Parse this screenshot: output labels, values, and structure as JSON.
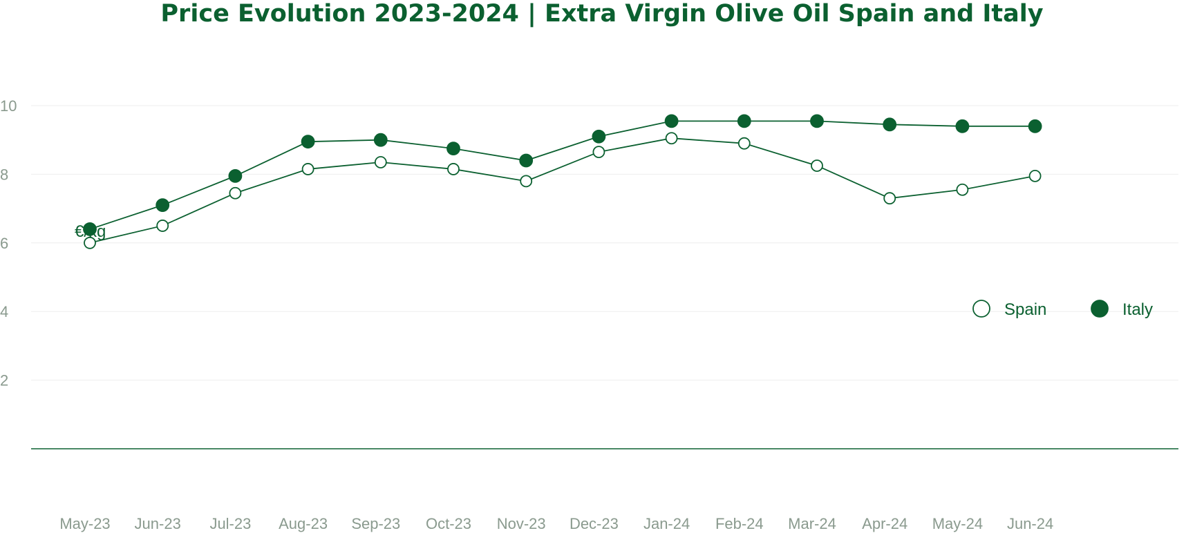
{
  "chart_data": {
    "type": "line",
    "title": "Price Evolution 2023-2024 | Extra Virgin Olive Oil Spain and Italy",
    "ylabel": "€/kg",
    "xlabel": "",
    "categories": [
      "May-23",
      "Jun-23",
      "Jul-23",
      "Aug-23",
      "Sep-23",
      "Oct-23",
      "Nov-23",
      "Dec-23",
      "Jan-24",
      "Feb-24",
      "Mar-24",
      "Apr-24",
      "May-24",
      "Jun-24"
    ],
    "yticks": [
      "2",
      "4",
      "6",
      "8",
      "10"
    ],
    "ylim": [
      0,
      10
    ],
    "grid": true,
    "legend_position": "right",
    "series": [
      {
        "name": "Spain",
        "marker": "open-circle",
        "values": [
          6.0,
          6.5,
          7.45,
          8.15,
          8.35,
          8.15,
          7.8,
          8.65,
          9.05,
          8.9,
          8.25,
          7.3,
          7.55,
          7.95
        ]
      },
      {
        "name": "Italy",
        "marker": "filled-circle",
        "values": [
          6.4,
          7.1,
          7.95,
          8.95,
          9.0,
          8.75,
          8.4,
          9.1,
          9.55,
          9.55,
          9.55,
          9.45,
          9.4,
          9.4
        ]
      }
    ],
    "colors": {
      "line": "#0b6030",
      "grid": "#eeeeee",
      "axis": "#0b6030",
      "tick": "#8a9a8e"
    }
  }
}
